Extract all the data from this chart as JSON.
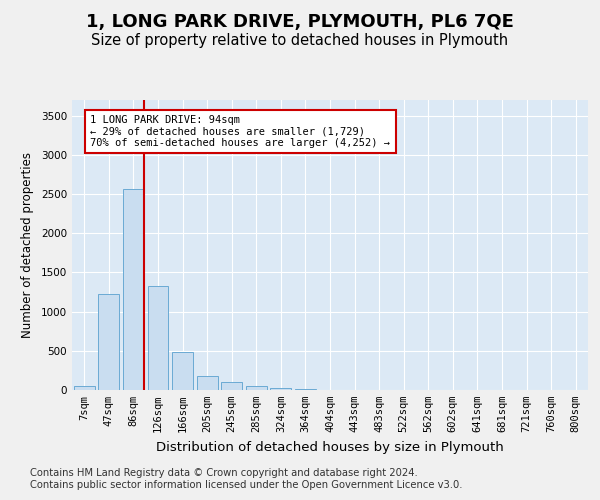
{
  "title": "1, LONG PARK DRIVE, PLYMOUTH, PL6 7QE",
  "subtitle": "Size of property relative to detached houses in Plymouth",
  "xlabel": "Distribution of detached houses by size in Plymouth",
  "ylabel": "Number of detached properties",
  "bar_color": "#c9ddf0",
  "bar_edge_color": "#6aaad4",
  "axes_bg_color": "#dce9f5",
  "grid_color": "#ffffff",
  "bins": [
    "7sqm",
    "47sqm",
    "86sqm",
    "126sqm",
    "166sqm",
    "205sqm",
    "245sqm",
    "285sqm",
    "324sqm",
    "364sqm",
    "404sqm",
    "443sqm",
    "483sqm",
    "522sqm",
    "562sqm",
    "602sqm",
    "641sqm",
    "681sqm",
    "721sqm",
    "760sqm",
    "800sqm"
  ],
  "values": [
    50,
    1230,
    2570,
    1330,
    490,
    175,
    100,
    55,
    30,
    10,
    0,
    0,
    0,
    0,
    0,
    0,
    0,
    0,
    0,
    0,
    0
  ],
  "ylim": [
    0,
    3700
  ],
  "yticks": [
    0,
    500,
    1000,
    1500,
    2000,
    2500,
    3000,
    3500
  ],
  "marker_bin_idx": 2,
  "annotation_line1": "1 LONG PARK DRIVE: 94sqm",
  "annotation_line2": "← 29% of detached houses are smaller (1,729)",
  "annotation_line3": "70% of semi-detached houses are larger (4,252) →",
  "annotation_box_fc": "#ffffff",
  "annotation_box_ec": "#cc0000",
  "marker_line_color": "#cc0000",
  "footer_line1": "Contains HM Land Registry data © Crown copyright and database right 2024.",
  "footer_line2": "Contains public sector information licensed under the Open Government Licence v3.0.",
  "fig_bg_color": "#f0f0f0",
  "title_fontsize": 13,
  "subtitle_fontsize": 10.5,
  "xlabel_fontsize": 9.5,
  "ylabel_fontsize": 8.5,
  "tick_fontsize": 7.5,
  "footer_fontsize": 7.2
}
